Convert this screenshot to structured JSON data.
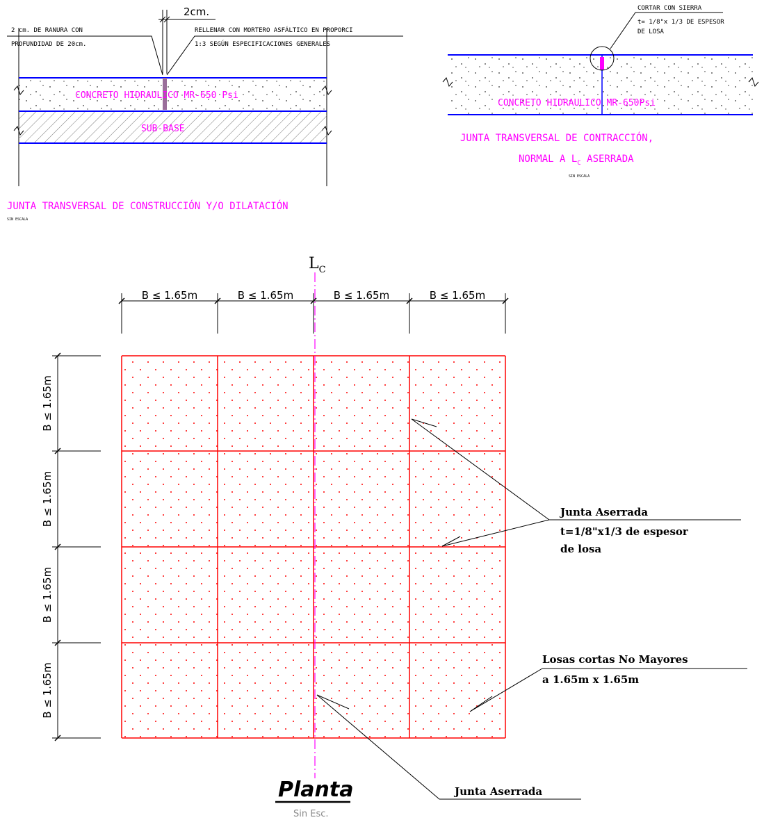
{
  "colors": {
    "magenta": "#ff00ff",
    "blue": "#0000ff",
    "red": "#ff0000",
    "black": "#000000",
    "grey": "#808080"
  },
  "detail_left": {
    "dim_2cm": "2cm.",
    "ranura_line1": "2 cm. DE RANURA CON",
    "ranura_line2": "PROFUNDIDAD DE 20cm.",
    "rellenar_line1": "RELLENAR CON MORTERO ASFÁLTICO EN PROPORCI",
    "rellenar_line2": "1:3 SEGÚN ESPECIFICACIONES GENERALES",
    "concreto": "CONCRETO HIDRAULICO   MR-650 Psi",
    "subbase": "SUB-BASE",
    "title": "JUNTA TRANSVERSAL DE CONSTRUCCIÓN Y/O DILATACIÓN",
    "scale": "SIN ESCALA"
  },
  "detail_right": {
    "cortar_line1": "CORTAR CON SIERRA",
    "cortar_line2": "t= 1/8\"x 1/3 DE ESPESOR",
    "cortar_line3": "DE LOSA",
    "concreto": "CONCRETO HIDRAULICO   MR-650Psi",
    "title_line1": "JUNTA TRANSVERSAL DE CONTRACCIÓN,",
    "title_line2_a": "NORMAL A ",
    "title_line2_sym": "L",
    "title_line2_sub": "C",
    "title_line2_b": " ASERRADA",
    "scale": "SIN ESCALA"
  },
  "plan": {
    "centerline_sym": "L",
    "centerline_sub": "C",
    "dims_top": [
      "B ≤ 1.65m",
      "B ≤ 1.65m",
      "B ≤ 1.65m",
      "B ≤ 1.65m"
    ],
    "dims_left": [
      "B ≤ 1.65m",
      "B ≤ 1.65m",
      "B ≤ 1.65m",
      "B ≤ 1.65m"
    ],
    "note1_line1": "Junta Aserrada",
    "note1_line2": "t=1/8\"x1/3 de espesor",
    "note1_line3": "de losa",
    "note2_line1": "Losas cortas No Mayores",
    "note2_line2": "a 1.65m x 1.65m",
    "note3": "Junta Aserrada",
    "title": "Planta",
    "subtitle": "Sin Esc."
  }
}
